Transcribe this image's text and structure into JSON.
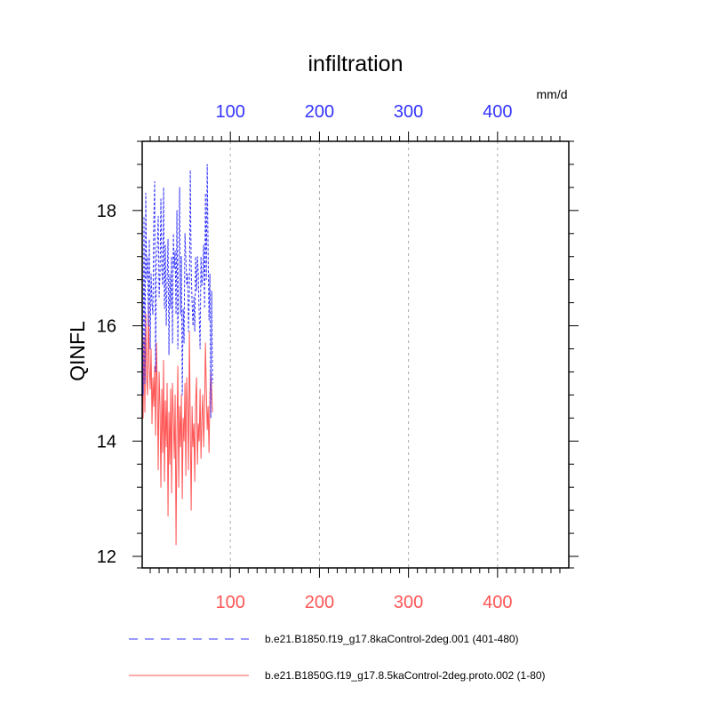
{
  "chart_data": {
    "type": "line",
    "title": "infiltration",
    "units_label": "mm/d",
    "ylabel": "QINFL",
    "xlabel": "",
    "xlim": [
      1,
      480
    ],
    "ylim": [
      11.8,
      19.2
    ],
    "grid": "vertical-dashed",
    "x_ticks": [
      100,
      200,
      300,
      400
    ],
    "x_tick_labels": [
      "100",
      "200",
      "300",
      "400"
    ],
    "y_ticks": [
      12,
      14,
      16,
      18
    ],
    "y_tick_labels": [
      "12",
      "14",
      "16",
      "18"
    ],
    "legend_position": "bottom",
    "series": [
      {
        "name": "b.e21.B1850.f19_g17.8kaControl-2deg.001 (401-480)",
        "color": "#3333ff",
        "style": "dashed",
        "x_start": 1,
        "values": [
          16.0,
          14.8,
          17.9,
          15.0,
          18.3,
          16.8,
          17.2,
          16.0,
          17.5,
          15.6,
          16.9,
          16.4,
          16.2,
          17.8,
          18.5,
          15.2,
          17.1,
          17.4,
          17.9,
          16.5,
          16.9,
          18.2,
          17.0,
          16.7,
          18.4,
          16.3,
          17.4,
          16.0,
          16.8,
          17.5,
          15.5,
          16.9,
          16.3,
          17.2,
          15.7,
          17.6,
          17.0,
          17.3,
          16.2,
          18.0,
          15.6,
          17.1,
          18.4,
          16.2,
          17.2,
          14.8,
          16.3,
          15.7,
          17.6,
          17.2,
          16.7,
          16.9,
          15.9,
          16.6,
          18.7,
          17.0,
          16.4,
          16.0,
          16.5,
          15.9,
          17.2,
          16.6,
          17.2,
          16.9,
          16.2,
          15.6,
          17.2,
          16.7,
          16.9,
          17.4,
          16.3,
          18.3,
          16.8,
          18.8,
          17.3,
          16.1,
          16.9,
          14.4,
          16.6,
          15.0
        ]
      },
      {
        "name": "b.e21.B1850G.f19_g17.8.5kaControl-2deg.proto.002 (1-80)",
        "color": "#ff5555",
        "style": "solid",
        "x_start": 1,
        "values": [
          15.0,
          14.4,
          15.8,
          14.5,
          16.2,
          15.1,
          14.8,
          16.4,
          15.3,
          14.9,
          15.6,
          14.3,
          15.1,
          14.6,
          15.3,
          14.1,
          15.7,
          14.9,
          13.5,
          15.2,
          14.6,
          13.2,
          14.9,
          13.8,
          15.4,
          13.3,
          14.7,
          13.9,
          15.0,
          12.7,
          14.5,
          13.6,
          14.9,
          13.1,
          15.0,
          14.4,
          13.7,
          14.8,
          12.2,
          14.2,
          15.3,
          13.2,
          14.6,
          13.9,
          14.8,
          13.0,
          14.4,
          14.0,
          15.0,
          13.4,
          15.1,
          14.5,
          13.5,
          15.9,
          14.3,
          12.8,
          14.6,
          13.9,
          14.3,
          13.3,
          14.7,
          15.1,
          13.6,
          14.3,
          14.0,
          14.9,
          13.7,
          14.4,
          14.8,
          13.9,
          14.5,
          15.7,
          14.9,
          14.2,
          14.6,
          13.8,
          14.8,
          15.2,
          14.9,
          14.5
        ]
      }
    ]
  }
}
